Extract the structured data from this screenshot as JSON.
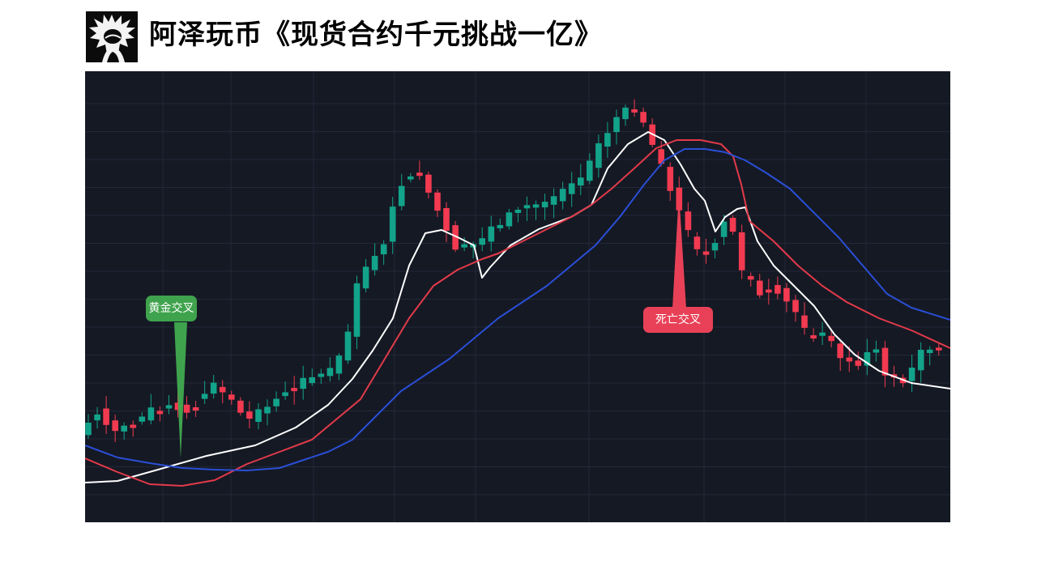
{
  "header": {
    "title": "阿泽玩币《现货合约千元挑战一亿》",
    "logo_icon": "spiky-hair-avatar-logo-icon"
  },
  "colors": {
    "background": "#151924",
    "grid": "#232838",
    "bull": "#12a38a",
    "bear": "#f23a50",
    "ma_fast": "#ffffff",
    "ma_mid": "#e33a49",
    "ma_slow": "#2a4fd6",
    "golden_tag": "#3fa34d",
    "death_tag": "#e84157"
  },
  "chart_data": {
    "type": "candlestick",
    "title": "",
    "xlabel": "",
    "ylabel": "",
    "axes_labels_visible": false,
    "grid": true,
    "series": [
      {
        "type": "candlestick"
      },
      {
        "type": "line",
        "color": "#ffffff"
      },
      {
        "type": "line",
        "color": "#e33a49"
      },
      {
        "type": "line",
        "color": "#2a4fd6"
      }
    ],
    "annotations": [
      {
        "label": "黄金交叉",
        "kind": "golden-cross"
      },
      {
        "label": "死亡交叉",
        "kind": "death-cross"
      }
    ]
  }
}
